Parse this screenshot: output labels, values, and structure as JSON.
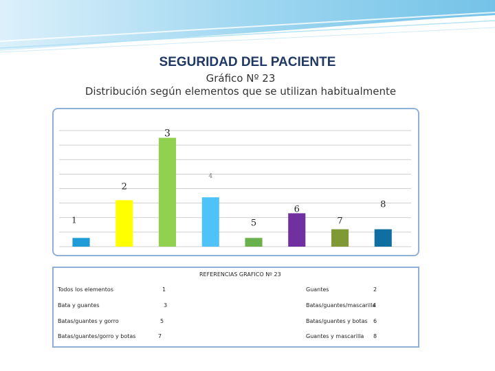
{
  "header": {
    "title": "SEGURIDAD DEL PACIENTE",
    "subtitle1": "Gráfico  Nº 23",
    "subtitle2": "Distribución según elementos que se utilizan habitualmente"
  },
  "colors": {
    "wave": "#7fc3e6",
    "frame": "#8fb0d6",
    "grid": "#bfbfbf"
  },
  "chart_data": {
    "type": "bar",
    "title": "Gráfico  Nº 23",
    "xlabel": "",
    "ylabel": "",
    "ylim": [
      0,
      8
    ],
    "grid": true,
    "categories": [
      "1",
      "2",
      "3",
      "4",
      "5",
      "6",
      "7",
      "8"
    ],
    "values": [
      0.6,
      3.2,
      7.5,
      3.4,
      0.6,
      2.3,
      1.2,
      1.2
    ],
    "colors": [
      "#1f9bd8",
      "#ffff00",
      "#92d050",
      "#4fc3f7",
      "#6ab04c",
      "#7030a0",
      "#7f9a35",
      "#0e6fa0"
    ]
  },
  "legend": {
    "title": "REFERENCIAS GRAFICO Nº 23",
    "left": [
      {
        "label": "Todos los elementos",
        "num": "1"
      },
      {
        "label": "Bata y guantes",
        "num": "3"
      },
      {
        "label": "Batas/guantes y gorro",
        "num": "5"
      },
      {
        "label": "Batas/guantes/gorro y botas",
        "num": "7"
      }
    ],
    "right": [
      {
        "label": "Guantes",
        "num": "2"
      },
      {
        "label": "Batas/guantes/mascarilla",
        "num": "4"
      },
      {
        "label": "Batas/guantes y botas",
        "num": "6"
      },
      {
        "label": "Guantes y mascarilla",
        "num": "8"
      }
    ]
  }
}
